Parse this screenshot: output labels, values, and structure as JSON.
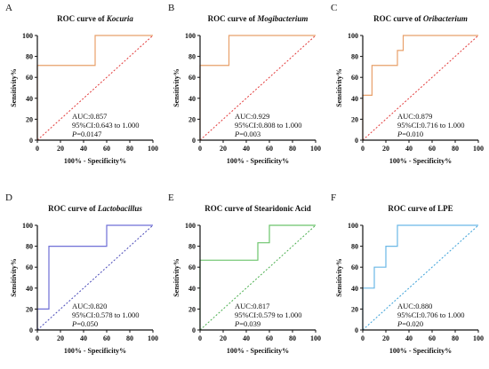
{
  "chart_data": [
    {
      "type": "line",
      "panel_letter": "A",
      "title_prefix": "ROC curve of ",
      "title_subject": "Kocuria",
      "title_italic": true,
      "color": "#e8a06a",
      "diagonal_color": "#e23b3b",
      "xlabel": "100% - Specificity%",
      "ylabel": "Sensitivity%",
      "xlim": [
        0,
        100
      ],
      "ylim": [
        0,
        100
      ],
      "xticks": [
        "0",
        "20",
        "40",
        "60",
        "80",
        "100"
      ],
      "yticks": [
        "0",
        "20",
        "40",
        "60",
        "80",
        "100"
      ],
      "x": [
        0,
        0,
        50,
        50,
        100
      ],
      "y": [
        0,
        71.4,
        71.4,
        100,
        100
      ],
      "auc": "AUC:0.857",
      "ci": "95%CI:0.643 to 1.000",
      "p_label": "P",
      "p_value": "=0.0147"
    },
    {
      "type": "line",
      "panel_letter": "B",
      "title_prefix": "ROC curve of ",
      "title_subject": "Mogibacterium",
      "title_italic": true,
      "color": "#e8a06a",
      "diagonal_color": "#e23b3b",
      "xlabel": "100% - Specificity%",
      "ylabel": "Sensitivity%",
      "xlim": [
        0,
        100
      ],
      "ylim": [
        0,
        100
      ],
      "xticks": [
        "0",
        "20",
        "40",
        "60",
        "80",
        "100"
      ],
      "yticks": [
        "0",
        "20",
        "40",
        "60",
        "80",
        "100"
      ],
      "x": [
        0,
        0,
        25,
        25,
        100
      ],
      "y": [
        0,
        71.4,
        71.4,
        100,
        100
      ],
      "auc": "AUC:0.929",
      "ci": "95%CI:0.808 to 1.000",
      "p_label": "P",
      "p_value": "=0.003"
    },
    {
      "type": "line",
      "panel_letter": "C",
      "title_prefix": "ROC curve of ",
      "title_subject": "Oribacterium",
      "title_italic": true,
      "color": "#e8a06a",
      "diagonal_color": "#e23b3b",
      "xlabel": "100% - Specificity%",
      "ylabel": "Sensitivity%",
      "xlim": [
        0,
        100
      ],
      "ylim": [
        0,
        100
      ],
      "xticks": [
        "0",
        "20",
        "40",
        "60",
        "80",
        "100"
      ],
      "yticks": [
        "0",
        "20",
        "40",
        "60",
        "80",
        "100"
      ],
      "x": [
        0,
        0,
        8,
        8,
        30,
        30,
        35,
        35,
        100
      ],
      "y": [
        0,
        42.9,
        42.9,
        71.4,
        71.4,
        85.7,
        85.7,
        100,
        100
      ],
      "auc": "AUC:0.879",
      "ci": "95%CI:0.716 to 1.000",
      "p_label": "P",
      "p_value": "=0.010"
    },
    {
      "type": "line",
      "panel_letter": "D",
      "title_prefix": "ROC curve of ",
      "title_subject": "Lactobacillus",
      "title_italic": true,
      "color": "#6f6fd6",
      "diagonal_color": "#4a4ab8",
      "xlabel": "100% - Specificity%",
      "ylabel": "Sensitivity%",
      "xlim": [
        0,
        100
      ],
      "ylim": [
        0,
        100
      ],
      "xticks": [
        "0",
        "20",
        "40",
        "60",
        "80",
        "100"
      ],
      "yticks": [
        "0",
        "20",
        "40",
        "60",
        "80",
        "100"
      ],
      "x": [
        0,
        0,
        10,
        10,
        60,
        60,
        100
      ],
      "y": [
        0,
        20,
        20,
        80,
        80,
        100,
        100
      ],
      "auc": "AUC:0.820",
      "ci": "95%CI:0.578 to 1.000",
      "p_label": "P",
      "p_value": "=0.050"
    },
    {
      "type": "line",
      "panel_letter": "E",
      "title_prefix": "ROC curve of ",
      "title_subject": "Stearidonic Acid",
      "title_italic": false,
      "color": "#6cc46c",
      "diagonal_color": "#4caf50",
      "xlabel": "100% - Specificity%",
      "ylabel": "Sensitivity%",
      "xlim": [
        0,
        100
      ],
      "ylim": [
        0,
        100
      ],
      "xticks": [
        "0",
        "20",
        "40",
        "60",
        "80",
        "100"
      ],
      "yticks": [
        "0",
        "20",
        "40",
        "60",
        "80",
        "100"
      ],
      "x": [
        0,
        0,
        50,
        50,
        60,
        60,
        100
      ],
      "y": [
        0,
        66.7,
        66.7,
        83.3,
        83.3,
        100,
        100
      ],
      "auc": "AUC:0.817",
      "ci": "95%CI:0.579 to 1.000",
      "p_label": "P",
      "p_value": "=0.039"
    },
    {
      "type": "line",
      "panel_letter": "F",
      "title_prefix": "ROC curve of ",
      "title_subject": "LPE",
      "title_italic": false,
      "color": "#6ab8e6",
      "diagonal_color": "#3aa0d8",
      "xlabel": "100% - Specificity%",
      "ylabel": "Sensitivity%",
      "xlim": [
        0,
        100
      ],
      "ylim": [
        0,
        100
      ],
      "xticks": [
        "0",
        "20",
        "40",
        "60",
        "80",
        "100"
      ],
      "yticks": [
        "0",
        "20",
        "40",
        "60",
        "80",
        "100"
      ],
      "x": [
        0,
        0,
        10,
        10,
        20,
        20,
        30,
        30,
        100
      ],
      "y": [
        0,
        40,
        40,
        60,
        60,
        80,
        80,
        100,
        100
      ],
      "auc": "AUC:0.880",
      "ci": "95%CI:0.706 to 1.000",
      "p_label": "P",
      "p_value": "=0.020"
    }
  ]
}
